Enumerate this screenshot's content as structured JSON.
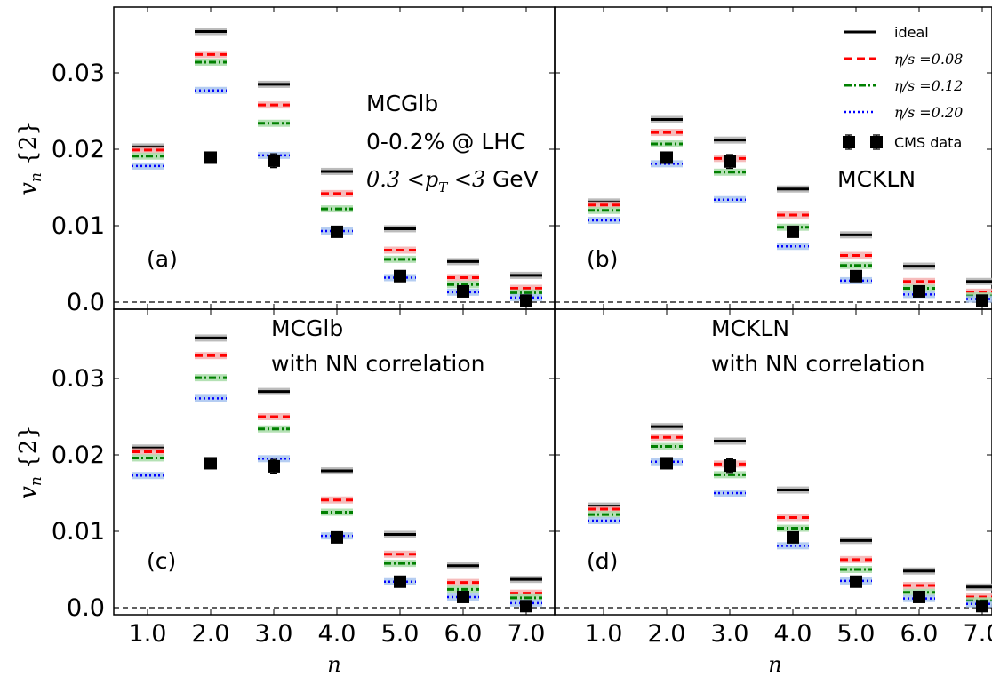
{
  "chart_data": [
    {
      "panel": "(a)",
      "type": "scatter",
      "annotation_lines": [
        "MCGlb",
        "0-0.2% @ LHC",
        "0.3 < pT < 3 GeV"
      ],
      "ylabel": "vn{2}",
      "xlabel": "",
      "xlim": [
        0.5,
        7.5
      ],
      "ylim": [
        -0.001,
        0.039
      ],
      "series": [
        {
          "name": "ideal",
          "x": [
            1,
            2,
            3,
            4,
            5,
            6,
            7
          ],
          "values": [
            0.0203,
            0.0354,
            0.0285,
            0.0171,
            0.0096,
            0.0053,
            0.0035
          ]
        },
        {
          "name": "η/s=0.08",
          "x": [
            1,
            2,
            3,
            4,
            5,
            6,
            7
          ],
          "values": [
            0.0199,
            0.0324,
            0.0258,
            0.0142,
            0.0068,
            0.0032,
            0.0018
          ]
        },
        {
          "name": "η/s=0.12",
          "x": [
            1,
            2,
            3,
            4,
            5,
            6,
            7
          ],
          "values": [
            0.0191,
            0.0314,
            0.0234,
            0.0122,
            0.0056,
            0.0023,
            0.0012
          ]
        },
        {
          "name": "η/s=0.20",
          "x": [
            1,
            2,
            3,
            4,
            5,
            6,
            7
          ],
          "values": [
            0.0178,
            0.0277,
            0.0192,
            0.0093,
            0.0032,
            0.0013,
            0.0006
          ]
        },
        {
          "name": "CMS data",
          "x": [
            1,
            2,
            3,
            4,
            5,
            6,
            7
          ],
          "values": [
            null,
            0.0189,
            0.0185,
            0.0092,
            0.0034,
            0.0014,
            0.0002
          ],
          "err": [
            null,
            0.0002,
            0.0009,
            0.0004,
            0.0003,
            0.0003,
            0.0004
          ]
        }
      ]
    },
    {
      "panel": "(b)",
      "type": "scatter",
      "annotation_lines": [
        "MCKLN"
      ],
      "ylabel": "",
      "xlabel": "",
      "xlim": [
        0.5,
        7.5
      ],
      "ylim": [
        -0.001,
        0.039
      ],
      "series": [
        {
          "name": "ideal",
          "x": [
            1,
            2,
            3,
            4,
            5,
            6,
            7
          ],
          "values": [
            0.0131,
            0.0239,
            0.0212,
            0.0148,
            0.0088,
            0.0047,
            0.0027
          ]
        },
        {
          "name": "η/s=0.08",
          "x": [
            1,
            2,
            3,
            4,
            5,
            6,
            7
          ],
          "values": [
            0.0127,
            0.0222,
            0.0188,
            0.0114,
            0.0061,
            0.0027,
            0.0013
          ]
        },
        {
          "name": "η/s=0.12",
          "x": [
            1,
            2,
            3,
            4,
            5,
            6,
            7
          ],
          "values": [
            0.012,
            0.0207,
            0.017,
            0.0098,
            0.0048,
            0.0018,
            0.0008
          ]
        },
        {
          "name": "η/s=0.20",
          "x": [
            1,
            2,
            3,
            4,
            5,
            6,
            7
          ],
          "values": [
            0.0107,
            0.0181,
            0.0134,
            0.0073,
            0.0028,
            0.001,
            0.0004
          ]
        },
        {
          "name": "CMS data",
          "x": [
            1,
            2,
            3,
            4,
            5,
            6,
            7
          ],
          "values": [
            null,
            0.0189,
            0.0184,
            0.0092,
            0.0034,
            0.0014,
            0.0002
          ],
          "err": [
            null,
            0.0002,
            0.0009,
            0.0004,
            0.0003,
            0.0003,
            0.0004
          ]
        }
      ]
    },
    {
      "panel": "(c)",
      "type": "scatter",
      "annotation_lines": [
        "MCGlb",
        "with NN correlation"
      ],
      "ylabel": "vn{2}",
      "xlabel": "n",
      "xlim": [
        0.5,
        7.5
      ],
      "ylim": [
        -0.001,
        0.039
      ],
      "series": [
        {
          "name": "ideal",
          "x": [
            1,
            2,
            3,
            4,
            5,
            6,
            7
          ],
          "values": [
            0.0209,
            0.0353,
            0.0283,
            0.0179,
            0.0096,
            0.0055,
            0.0037
          ]
        },
        {
          "name": "η/s=0.08",
          "x": [
            1,
            2,
            3,
            4,
            5,
            6,
            7
          ],
          "values": [
            0.0204,
            0.033,
            0.025,
            0.0141,
            0.007,
            0.0033,
            0.0019
          ]
        },
        {
          "name": "η/s=0.12",
          "x": [
            1,
            2,
            3,
            4,
            5,
            6,
            7
          ],
          "values": [
            0.0196,
            0.0301,
            0.0234,
            0.0125,
            0.0058,
            0.0024,
            0.0013
          ]
        },
        {
          "name": "η/s=0.20",
          "x": [
            1,
            2,
            3,
            4,
            5,
            6,
            7
          ],
          "values": [
            0.0173,
            0.0274,
            0.0195,
            0.0094,
            0.0034,
            0.0014,
            0.0006
          ]
        },
        {
          "name": "CMS data",
          "x": [
            1,
            2,
            3,
            4,
            5,
            6,
            7
          ],
          "values": [
            null,
            0.0189,
            0.0185,
            0.0092,
            0.0034,
            0.0014,
            0.0002
          ],
          "err": [
            null,
            0.0002,
            0.0009,
            0.0004,
            0.0003,
            0.0003,
            0.0004
          ]
        }
      ]
    },
    {
      "panel": "(d)",
      "type": "scatter",
      "annotation_lines": [
        "MCKLN",
        "with NN correlation"
      ],
      "ylabel": "",
      "xlabel": "n",
      "xlim": [
        0.5,
        7.5
      ],
      "ylim": [
        -0.001,
        0.039
      ],
      "series": [
        {
          "name": "ideal",
          "x": [
            1,
            2,
            3,
            4,
            5,
            6,
            7
          ],
          "values": [
            0.0133,
            0.0237,
            0.0218,
            0.0154,
            0.0088,
            0.0048,
            0.0027
          ]
        },
        {
          "name": "η/s=0.08",
          "x": [
            1,
            2,
            3,
            4,
            5,
            6,
            7
          ],
          "values": [
            0.0129,
            0.0223,
            0.0188,
            0.0118,
            0.0063,
            0.0029,
            0.0014
          ]
        },
        {
          "name": "η/s=0.12",
          "x": [
            1,
            2,
            3,
            4,
            5,
            6,
            7
          ],
          "values": [
            0.0122,
            0.0211,
            0.0174,
            0.0104,
            0.005,
            0.002,
            0.0009
          ]
        },
        {
          "name": "η/s=0.20",
          "x": [
            1,
            2,
            3,
            4,
            5,
            6,
            7
          ],
          "values": [
            0.0114,
            0.0191,
            0.015,
            0.0081,
            0.0035,
            0.0012,
            0.0005
          ]
        },
        {
          "name": "CMS data",
          "x": [
            1,
            2,
            3,
            4,
            5,
            6,
            7
          ],
          "values": [
            null,
            0.0189,
            0.0186,
            0.0092,
            0.0034,
            0.0014,
            0.0002
          ],
          "err": [
            null,
            0.0002,
            0.0009,
            0.0004,
            0.0003,
            0.0003,
            0.0004
          ]
        }
      ]
    }
  ],
  "axes": {
    "x_ticks": [
      "1.0",
      "2.0",
      "3.0",
      "4.0",
      "5.0",
      "6.0",
      "7.0"
    ],
    "y_ticks": [
      "0.0",
      "0.01",
      "0.02",
      "0.03"
    ],
    "y_tick_values": [
      0,
      0.01,
      0.02,
      0.03
    ],
    "ylabel_main": "v",
    "ylabel_sub": "n",
    "ylabel_braces": "{2}",
    "xlabel": "n"
  },
  "legend": {
    "placement": "top-right of panel (b)",
    "entries": [
      {
        "label": "ideal",
        "style": "solid",
        "color": "#000000"
      },
      {
        "label": "η/s =0.08",
        "style": "dashed",
        "color": "#ff0000"
      },
      {
        "label": "η/s =0.12",
        "style": "dashdot",
        "color": "#008000"
      },
      {
        "label": "η/s =0.20",
        "style": "dotted",
        "color": "#0000ff"
      },
      {
        "label": "CMS data",
        "style": "marker",
        "color": "#000000"
      }
    ]
  },
  "colors": {
    "ideal": "#000000",
    "eta008": "#ff0000",
    "eta012": "#008000",
    "eta020": "#0000ff",
    "data": "#000000"
  }
}
